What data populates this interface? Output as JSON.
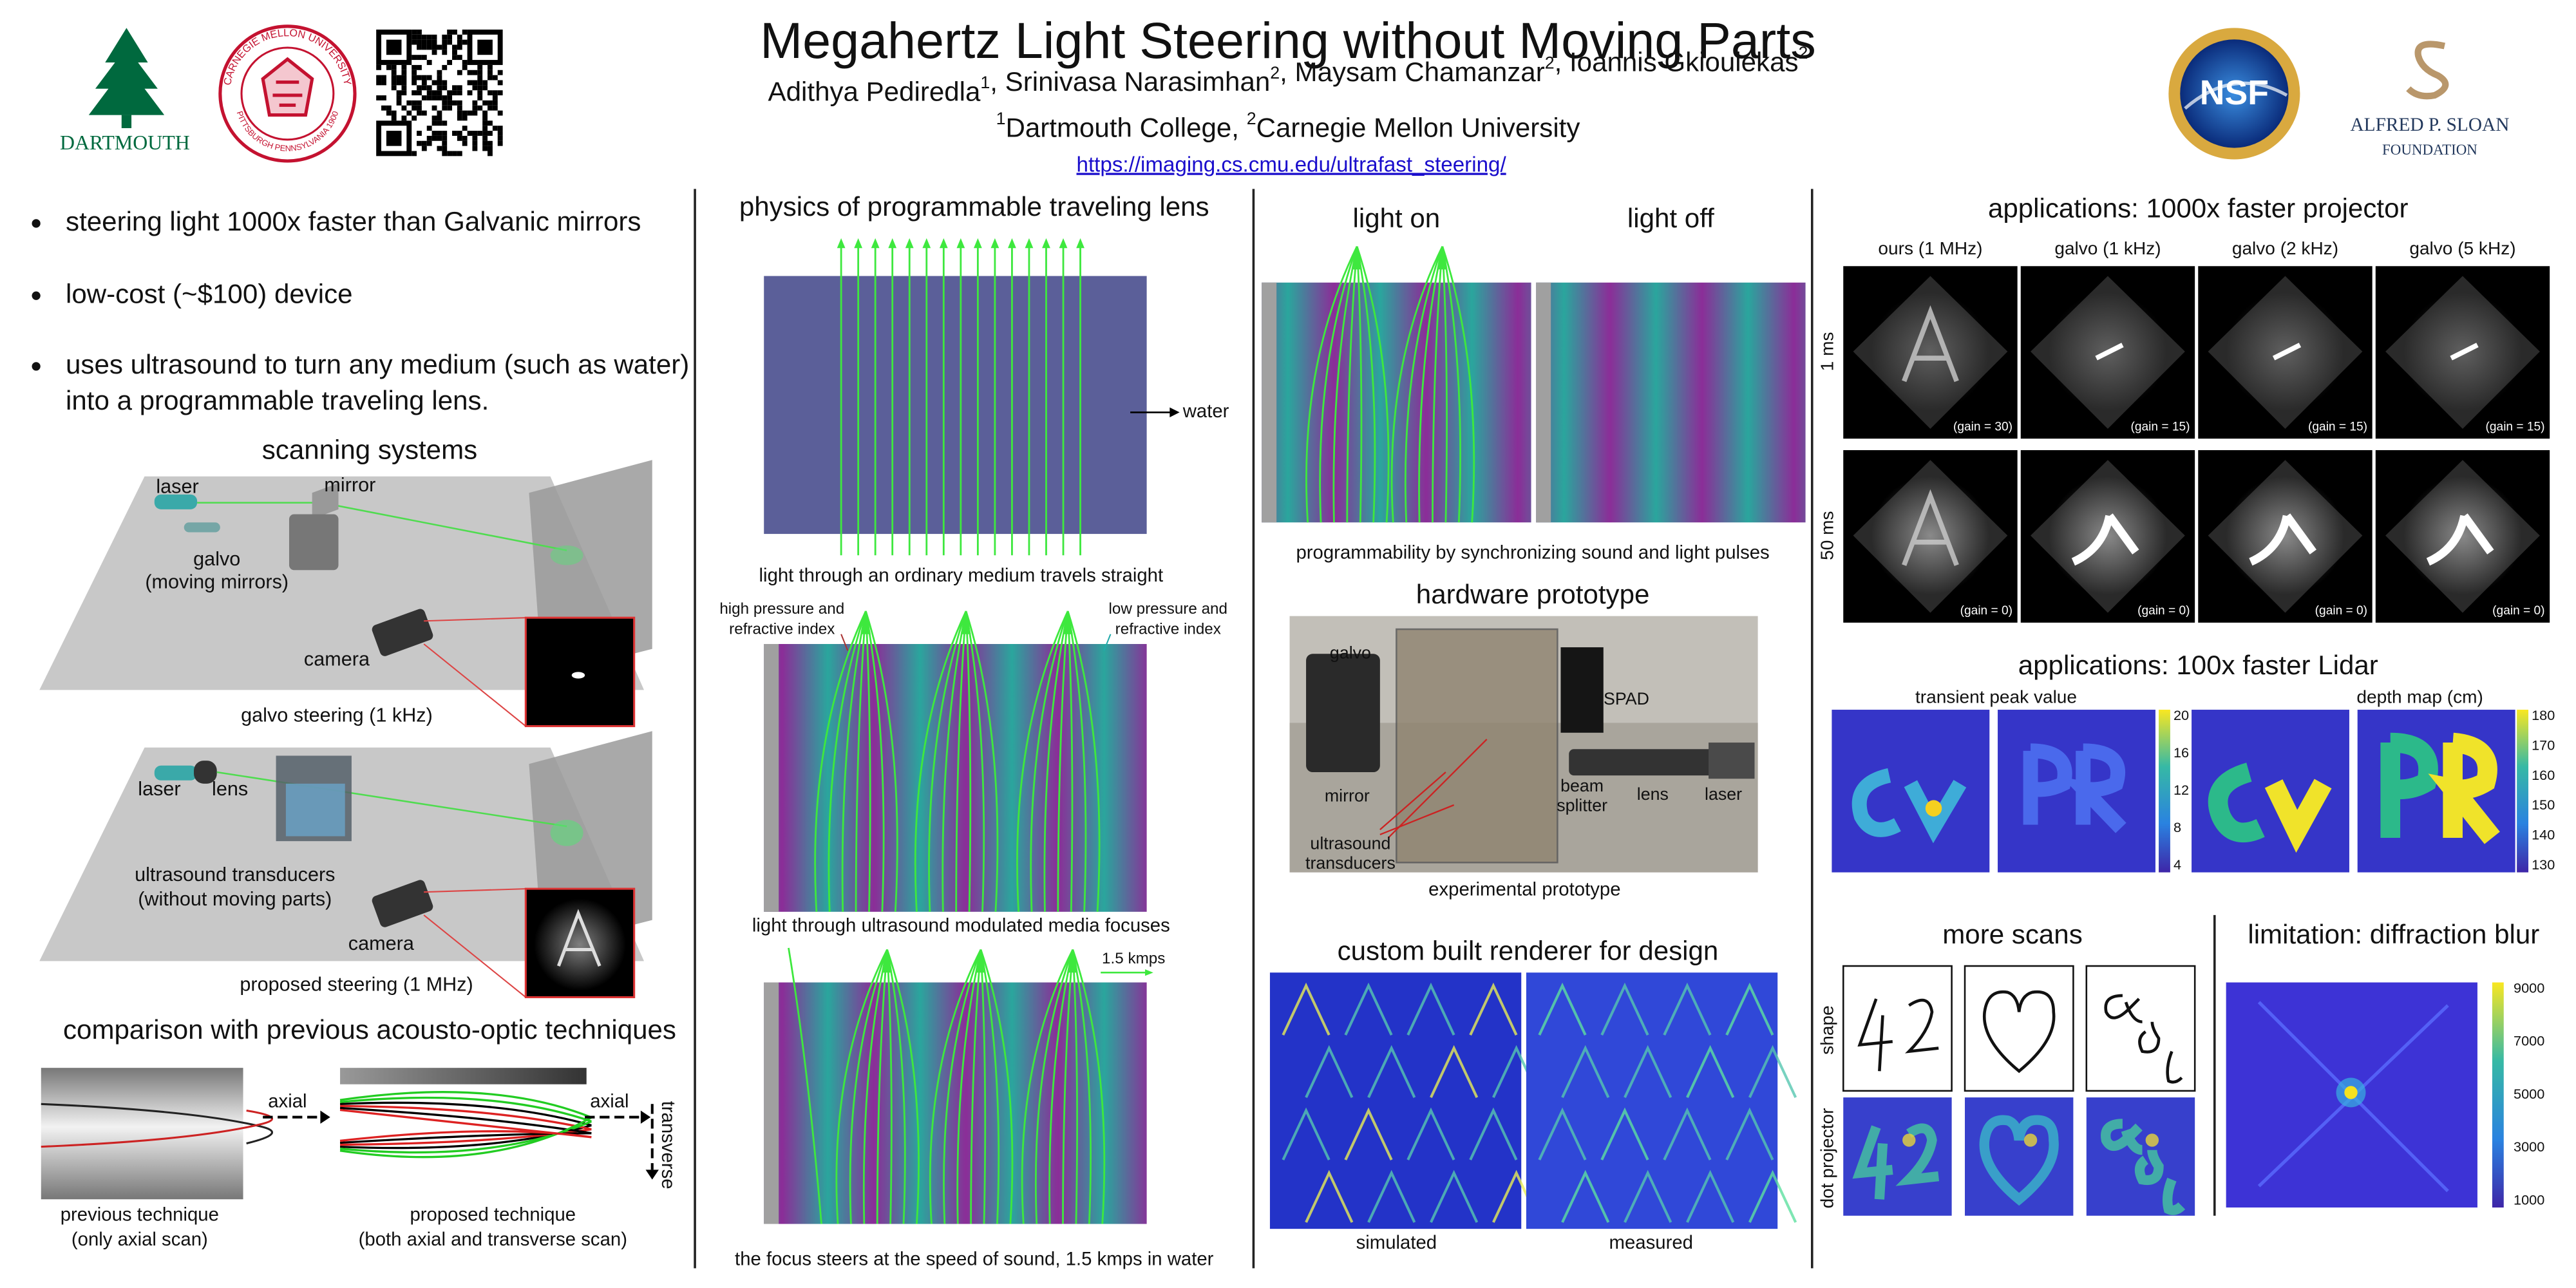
{
  "header": {
    "title": "Megahertz Light Steering without Moving Parts",
    "authors": [
      {
        "name": "Adithya Pediredla",
        "sup": "1"
      },
      {
        "name": ", Srinivasa Narasimhan",
        "sup": "2"
      },
      {
        "name": ", Maysam Chamanzar",
        "sup": "2"
      },
      {
        "name": ", Ioannis Gkioulekas",
        "sup": "2"
      }
    ],
    "affiliations": [
      {
        "sup": "1",
        "name": "Dartmouth College, "
      },
      {
        "sup": "2",
        "name": "Carnegie Mellon University"
      }
    ],
    "url": "https://imaging.cs.cmu.edu/ultrafast_steering/",
    "logos": {
      "dartmouth": "DARTMOUTH",
      "cmu_ring_top": "CARNEGIE MELLON UNIVERSITY",
      "cmu_ring_bottom": "PITTSBURGH PENNSYLVANIA 1900",
      "nsf": "NSF",
      "sloan": "ALFRED P. SLOAN",
      "sloan_sub": "FOUNDATION"
    }
  },
  "intro": {
    "bullets": [
      [
        "steering light 1000x faster than Galvanic mirrors"
      ],
      [
        "low-cost (~$100) device"
      ],
      [
        "uses ultrasound to turn any medium (such as water)",
        "into a programmable traveling lens."
      ]
    ]
  },
  "scanning": {
    "title": "scanning systems",
    "galvo": {
      "laser": "laser",
      "mirror": "mirror",
      "galvo": [
        "galvo",
        "(moving mirrors)"
      ],
      "camera": "camera",
      "caption": "galvo steering (1 kHz)"
    },
    "proposed": {
      "laser": "laser",
      "lens": "lens",
      "transducers": [
        "ultrasound transducers",
        "(without moving parts)"
      ],
      "camera": "camera",
      "caption": "proposed steering (1 MHz)"
    }
  },
  "comparison": {
    "title": "comparison with previous acousto-optic techniques",
    "previous": {
      "axial": "axial",
      "caption": [
        "previous technique",
        "(only axial scan)"
      ]
    },
    "proposed": {
      "axial": "axial",
      "transverse": "transverse",
      "caption": [
        "proposed technique",
        "(both axial and transverse scan)"
      ]
    }
  },
  "physics": {
    "title": "physics of programmable traveling lens",
    "water": "water",
    "caption_straight": "light through an ordinary medium travels straight",
    "high": [
      "high pressure and",
      "refractive index"
    ],
    "low": [
      "low pressure and",
      "refractive index"
    ],
    "caption_focus": "light through ultrasound modulated media focuses",
    "speed": "1.5 kmps",
    "caption_steer": "the focus steers at the speed of sound, 1.5 kmps in water"
  },
  "sync": {
    "light_on": "light on",
    "light_off": "light off",
    "caption": "programmability by synchronizing sound and light pulses"
  },
  "hardware": {
    "title": "hardware prototype",
    "labels": {
      "galvo": "galvo",
      "spad": "SPAD",
      "mirror": "mirror",
      "beam_splitter": [
        "beam",
        "splitter"
      ],
      "lens": "lens",
      "laser": "laser",
      "transducers": [
        "ultrasound",
        "transducers"
      ]
    },
    "caption": "experimental prototype"
  },
  "renderer": {
    "title": "custom built renderer for design",
    "simulated": "simulated",
    "measured": "measured"
  },
  "projector": {
    "title": "applications: 1000x faster projector",
    "columns": [
      "ours (1 MHz)",
      "galvo (1 kHz)",
      "galvo (2 kHz)",
      "galvo (5 kHz)"
    ],
    "rows": [
      "1 ms",
      "50 ms"
    ],
    "gains": [
      [
        "(gain = 30)",
        "(gain = 15)",
        "(gain = 15)",
        "(gain = 15)"
      ],
      [
        "(gain = 0)",
        "(gain = 0)",
        "(gain = 0)",
        "(gain = 0)"
      ]
    ]
  },
  "lidar": {
    "title": "applications: 100x faster Lidar",
    "transient": {
      "title": "transient peak value",
      "ticks": [
        20,
        16,
        12,
        8,
        4
      ]
    },
    "depth": {
      "title": "depth map (cm)",
      "ticks": [
        180,
        170,
        160,
        150,
        140,
        130
      ]
    }
  },
  "scans": {
    "title": "more scans",
    "rows": [
      "shape",
      "dot projector"
    ]
  },
  "limitation": {
    "title": "limitation: diffraction blur",
    "ticks": [
      9000,
      7000,
      5000,
      3000,
      1000
    ]
  }
}
